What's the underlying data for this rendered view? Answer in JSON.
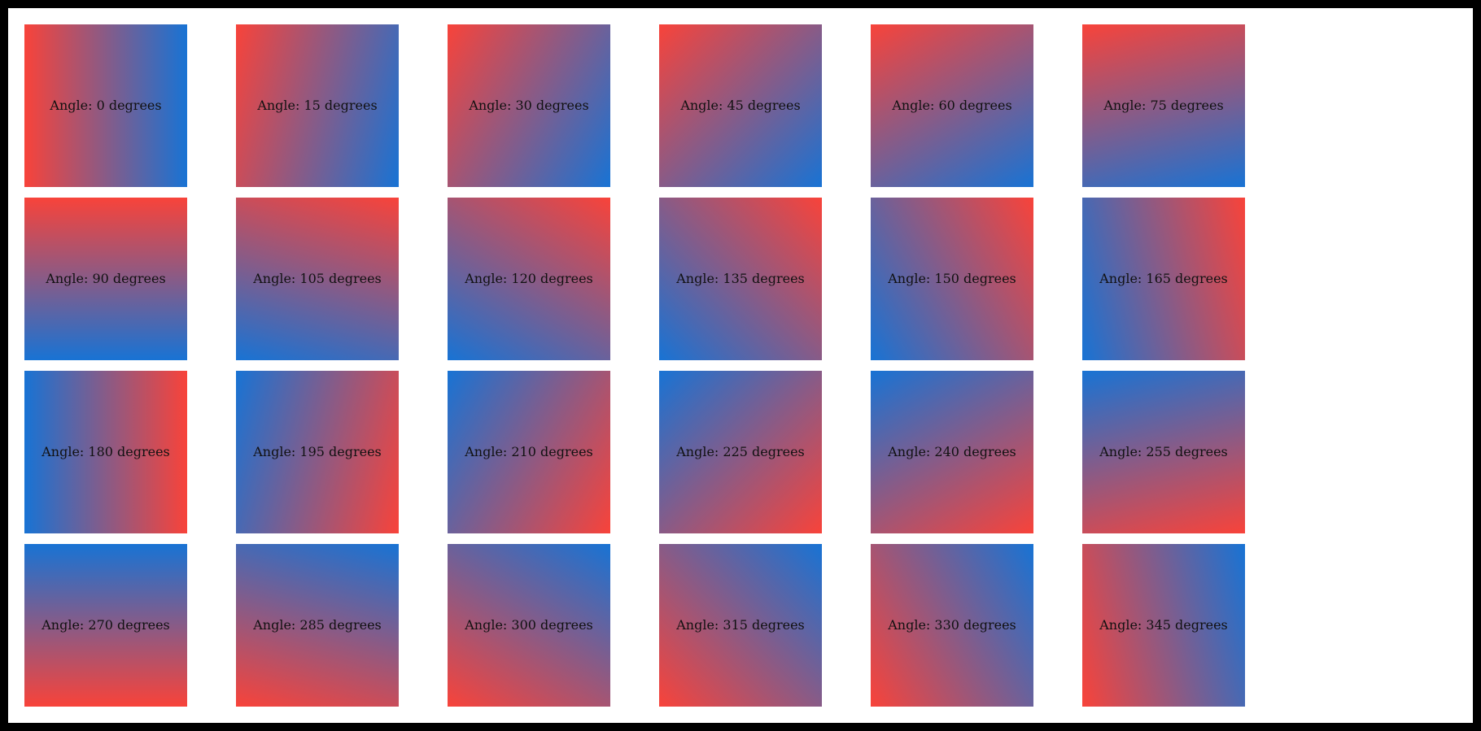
{
  "page": {
    "frame_color": "#000000",
    "background_color": "#ffffff",
    "label_color": "#111111"
  },
  "gradient": {
    "start_color": "#f8433a",
    "end_color": "#1873d4",
    "angle_step_degrees": 15,
    "css_angle_offset_degrees": 90
  },
  "tiles": [
    {
      "angle_degrees": 0,
      "label": "Angle: 0 degrees"
    },
    {
      "angle_degrees": 15,
      "label": "Angle: 15 degrees"
    },
    {
      "angle_degrees": 30,
      "label": "Angle: 30 degrees"
    },
    {
      "angle_degrees": 45,
      "label": "Angle: 45 degrees"
    },
    {
      "angle_degrees": 60,
      "label": "Angle: 60 degrees"
    },
    {
      "angle_degrees": 75,
      "label": "Angle: 75 degrees"
    },
    {
      "angle_degrees": 90,
      "label": "Angle: 90 degrees"
    },
    {
      "angle_degrees": 105,
      "label": "Angle: 105 degrees"
    },
    {
      "angle_degrees": 120,
      "label": "Angle: 120 degrees"
    },
    {
      "angle_degrees": 135,
      "label": "Angle: 135 degrees"
    },
    {
      "angle_degrees": 150,
      "label": "Angle: 150 degrees"
    },
    {
      "angle_degrees": 165,
      "label": "Angle: 165 degrees"
    },
    {
      "angle_degrees": 180,
      "label": "Angle: 180 degrees"
    },
    {
      "angle_degrees": 195,
      "label": "Angle: 195 degrees"
    },
    {
      "angle_degrees": 210,
      "label": "Angle: 210 degrees"
    },
    {
      "angle_degrees": 225,
      "label": "Angle: 225 degrees"
    },
    {
      "angle_degrees": 240,
      "label": "Angle: 240 degrees"
    },
    {
      "angle_degrees": 255,
      "label": "Angle: 255 degrees"
    },
    {
      "angle_degrees": 270,
      "label": "Angle: 270 degrees"
    },
    {
      "angle_degrees": 285,
      "label": "Angle: 285 degrees"
    },
    {
      "angle_degrees": 300,
      "label": "Angle: 300 degrees"
    },
    {
      "angle_degrees": 315,
      "label": "Angle: 315 degrees"
    },
    {
      "angle_degrees": 330,
      "label": "Angle: 330 degrees"
    },
    {
      "angle_degrees": 345,
      "label": "Angle: 345 degrees"
    }
  ]
}
